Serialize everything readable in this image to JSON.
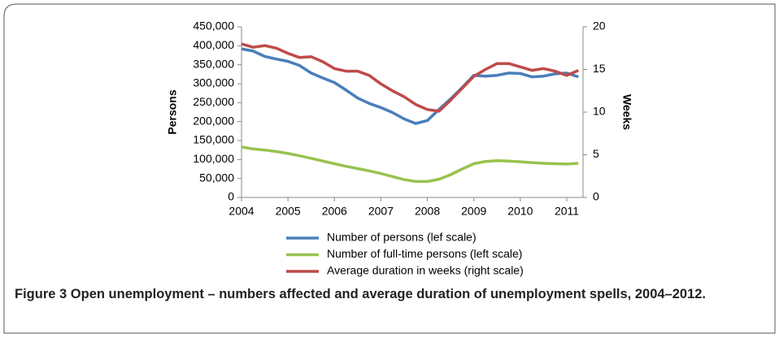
{
  "chart_data": {
    "type": "line",
    "y_label": "Persons",
    "y2_label": "Weeks",
    "x": [
      2004,
      2004.25,
      2004.5,
      2004.75,
      2005,
      2005.25,
      2005.5,
      2005.75,
      2006,
      2006.25,
      2006.5,
      2006.75,
      2007,
      2007.25,
      2007.5,
      2007.75,
      2008,
      2008.25,
      2008.5,
      2008.75,
      2009,
      2009.25,
      2009.5,
      2009.75,
      2010,
      2010.25,
      2010.5,
      2010.75,
      2011,
      2011.25
    ],
    "xlim": [
      2004,
      2011.35
    ],
    "xticks": [
      2004,
      2005,
      2006,
      2007,
      2008,
      2009,
      2010,
      2011
    ],
    "ylim": [
      0,
      450000
    ],
    "yticks": [
      0,
      {
        "value": 50000,
        "label": "50,000"
      },
      {
        "value": 100000,
        "label": "100,000"
      },
      {
        "value": 150000,
        "label": "150,000"
      },
      {
        "value": 200000,
        "label": "200,000"
      },
      {
        "value": 250000,
        "label": "250,000"
      },
      {
        "value": 300000,
        "label": "300,000"
      },
      {
        "value": 350000,
        "label": "350,000"
      },
      {
        "value": 400000,
        "label": "400,000"
      },
      {
        "value": 450000,
        "label": "450,000"
      }
    ],
    "y2lim": [
      0,
      20
    ],
    "y2ticks": [
      0,
      5,
      10,
      15,
      20
    ],
    "series": [
      {
        "name": "Number of persons (lef scale)",
        "color": "#4a7ebb",
        "values": [
          392000,
          386000,
          372000,
          365000,
          359000,
          348000,
          328000,
          315000,
          303000,
          283000,
          262000,
          248000,
          237000,
          224000,
          207000,
          195000,
          203000,
          232000,
          260000,
          290000,
          322000,
          320000,
          322000,
          328000,
          327000,
          318000,
          320000,
          326000,
          328000,
          318000
        ]
      },
      {
        "name": "Number of full-time persons (left scale)",
        "color": "#98c24f",
        "values": [
          133000,
          128000,
          125000,
          121000,
          116000,
          110000,
          103000,
          96000,
          89000,
          82000,
          76000,
          70000,
          63000,
          55000,
          47000,
          42000,
          42000,
          48000,
          60000,
          75000,
          89000,
          95000,
          97000,
          96000,
          94000,
          92000,
          90000,
          89000,
          88000,
          90000
        ]
      },
      {
        "name": "Average duration in weeks (right scale)",
        "color": "#be4b48",
        "axis": "y2",
        "values": [
          18.0,
          17.6,
          17.8,
          17.5,
          16.9,
          16.4,
          16.5,
          15.9,
          15.1,
          14.8,
          14.8,
          14.3,
          13.3,
          12.5,
          11.8,
          10.9,
          10.3,
          10.1,
          11.4,
          12.8,
          14.2,
          15.0,
          15.7,
          15.7,
          15.3,
          14.9,
          15.1,
          14.8,
          14.3,
          14.9
        ]
      }
    ],
    "caption_label": "Figure 3",
    "caption": "Open unemployment – numbers affected and average duration of unemployment spells, 2004–2012."
  }
}
